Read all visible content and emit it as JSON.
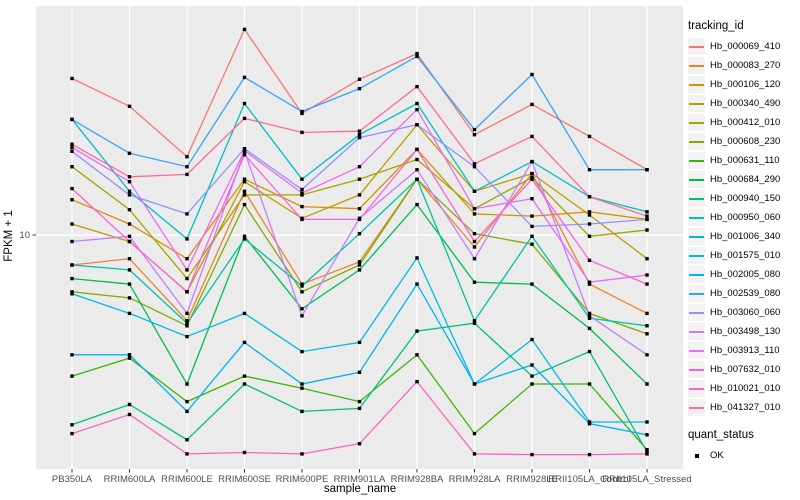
{
  "chart": {
    "panel_bg": "#EBEBEB",
    "grid_color": "#FFFFFF",
    "tick_color": "#333333",
    "tick_label_color": "#4D4D4D",
    "point_color": "#000000",
    "y_tick_label": "10",
    "x_axis_title": "sample_name",
    "y_axis_title": "FPKM + 1",
    "legend_tracking_title": "tracking_id",
    "legend_quant_title": "quant_status",
    "legend_quant_label": "OK",
    "legend_quant_shape": "black-square"
  },
  "chart_data": {
    "type": "line",
    "title": "",
    "xlabel": "sample_name",
    "ylabel": "FPKM + 1",
    "yscale": "log10",
    "yticks": [
      10
    ],
    "ylim": [
      1.6,
      60
    ],
    "grid": "white major gridlines on gray panel; vertical line per category, horizontal line at y=10",
    "legend_position": "right",
    "marker": "black square (quant_status OK)",
    "categories": [
      "PB350LA",
      "RRIM600LA",
      "RRIM600LE",
      "RRIM600SE",
      "RRIM600PE",
      "RRIM901LA",
      "RRIM928BA",
      "RRIM928LA",
      "RRIM928LE",
      "RRII105LA_Control",
      "RRII105LA_Stressed"
    ],
    "series": [
      {
        "name": "Hb_000069_410",
        "color": "#F8766D",
        "values": [
          34.2,
          27.5,
          18.5,
          50.3,
          26.0,
          34.0,
          41.6,
          22.0,
          27.9,
          21.7,
          16.7
        ]
      },
      {
        "name": "Hb_000083_270",
        "color": "#EA8331",
        "values": [
          7.9,
          8.3,
          5.1,
          14.1,
          6.8,
          8.1,
          15.5,
          9.1,
          16.2,
          6.8,
          5.4
        ]
      },
      {
        "name": "Hb_000106_120",
        "color": "#D89000",
        "values": [
          13.2,
          10.9,
          8.3,
          15.5,
          12.5,
          12.3,
          19.6,
          11.8,
          11.6,
          12.0,
          11.3
        ]
      },
      {
        "name": "Hb_000340_490",
        "color": "#C09B00",
        "values": [
          10.9,
          9.5,
          6.4,
          15.2,
          11.4,
          13.7,
          23.8,
          14.1,
          16.2,
          11.7,
          8.3
        ]
      },
      {
        "name": "Hb_000412_010",
        "color": "#A3A500",
        "values": [
          17.1,
          12.2,
          7.1,
          13.7,
          13.7,
          15.5,
          18.1,
          12.3,
          15.7,
          9.9,
          10.4
        ]
      },
      {
        "name": "Hb_000608_230",
        "color": "#7CAE00",
        "values": [
          6.4,
          6.1,
          4.9,
          12.7,
          6.4,
          7.9,
          15.5,
          10.1,
          9.3,
          5.4,
          4.6
        ]
      },
      {
        "name": "Hb_000631_110",
        "color": "#39B600",
        "values": [
          3.3,
          3.8,
          2.7,
          3.3,
          3.0,
          2.7,
          3.9,
          2.1,
          3.1,
          3.1,
          1.85
        ]
      },
      {
        "name": "Hb_000684_290",
        "color": "#00BB4E",
        "values": [
          7.1,
          6.8,
          3.1,
          9.9,
          5.6,
          7.6,
          12.7,
          6.9,
          6.8,
          4.8,
          3.1
        ]
      },
      {
        "name": "Hb_000940_150",
        "color": "#00BF7D",
        "values": [
          2.25,
          2.64,
          2.0,
          3.1,
          2.5,
          2.56,
          4.7,
          5.0,
          3.3,
          4.0,
          1.82
        ]
      },
      {
        "name": "Hb_000950_060",
        "color": "#00C1A3",
        "values": [
          7.9,
          7.6,
          5.0,
          9.7,
          6.7,
          10.1,
          15.5,
          5.1,
          9.9,
          5.2,
          4.9
        ]
      },
      {
        "name": "Hb_001006_340",
        "color": "#00BFC4",
        "values": [
          24.8,
          14.1,
          9.7,
          28.1,
          15.5,
          22.0,
          28.1,
          14.1,
          17.8,
          13.5,
          12.0
        ]
      },
      {
        "name": "Hb_001575_010",
        "color": "#00BAE0",
        "values": [
          6.3,
          5.4,
          4.5,
          5.4,
          4.0,
          4.3,
          8.35,
          3.1,
          4.4,
          2.3,
          2.3
        ]
      },
      {
        "name": "Hb_002005_080",
        "color": "#00B0F6",
        "values": [
          3.9,
          3.9,
          2.5,
          4.3,
          3.1,
          3.4,
          6.8,
          3.1,
          3.6,
          2.27,
          2.08
        ]
      },
      {
        "name": "Hb_002539_080",
        "color": "#35A2FF",
        "values": [
          24.8,
          19.0,
          17.1,
          34.5,
          26.4,
          31.6,
          40.7,
          22.9,
          35.3,
          16.7,
          16.7
        ]
      },
      {
        "name": "Hb_003060_060",
        "color": "#9590FF",
        "values": [
          19.3,
          13.7,
          11.8,
          19.7,
          14.3,
          21.5,
          23.8,
          17.1,
          10.7,
          10.9,
          11.3
        ]
      },
      {
        "name": "Hb_003498_130",
        "color": "#C77CFF",
        "values": [
          9.5,
          9.9,
          5.4,
          19.3,
          5.3,
          11.4,
          16.7,
          8.3,
          17.8,
          5.3,
          3.9
        ]
      },
      {
        "name": "Hb_003913_110",
        "color": "#E76BF3",
        "values": [
          19.9,
          15.2,
          7.6,
          19.4,
          13.9,
          17.1,
          26.8,
          12.3,
          13.3,
          6.9,
          7.3
        ]
      },
      {
        "name": "Hb_007632_010",
        "color": "#FA62DB",
        "values": [
          14.4,
          9.5,
          6.4,
          18.8,
          11.3,
          11.3,
          19.6,
          9.5,
          15.5,
          8.2,
          6.8
        ]
      },
      {
        "name": "Hb_010021_010",
        "color": "#FF62BC",
        "values": [
          2.1,
          2.44,
          1.79,
          1.81,
          1.79,
          1.94,
          3.16,
          1.79,
          1.78,
          1.78,
          1.79
        ]
      },
      {
        "name": "Hb_041327_010",
        "color": "#FF6A98",
        "values": [
          20.4,
          15.8,
          16.1,
          25.0,
          22.4,
          22.6,
          32.1,
          17.5,
          21.7,
          13.5,
          11.6
        ]
      }
    ]
  }
}
